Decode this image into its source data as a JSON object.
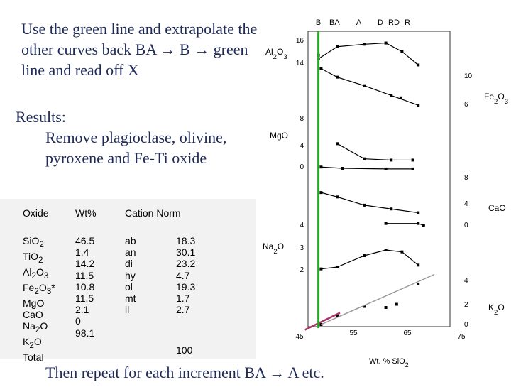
{
  "instructions": "Use the green line and extrapolate the other curves back BA → B → green line and read off X",
  "results": {
    "heading": "Results:",
    "body": "Remove plagioclase, olivine, pyroxene and Fe-Ti oxide"
  },
  "footer": "Then repeat for each increment BA → A etc.",
  "table": {
    "headers": {
      "oxide": "Oxide",
      "wt": "Wt%",
      "cation": "Cation Norm"
    },
    "oxides": [
      "SiO2",
      "TiO2",
      "Al2O3",
      "Fe2O3*",
      "MgO",
      "CaO",
      "Na2O",
      "K2O",
      "Total"
    ],
    "wt": [
      "46.5",
      "1.4",
      "14.2",
      "11.5",
      "10.8",
      "11.5",
      "2.1",
      "0",
      "98.1"
    ],
    "norm_minerals": [
      "ab",
      "an",
      "di",
      "hy",
      "ol",
      "mt",
      "il"
    ],
    "norm_values": [
      "18.3",
      "30.1",
      "23.2",
      "4.7",
      "19.3",
      "1.7",
      "2.7"
    ],
    "norm_total": "100"
  },
  "colors": {
    "text": "#1f2a57",
    "green_line": "#22aa22",
    "extrapolation": "#999999",
    "k2o_extension": "#aa3366",
    "table_bg": "#f2f2f2"
  },
  "chart_data": {
    "type": "scatter",
    "xlabel": "Wt. % SiO2",
    "x_ticks": [
      "45",
      "55",
      "65",
      "75"
    ],
    "xlim": [
      45,
      75
    ],
    "green_line_x": 48.5,
    "sample_labels": [
      {
        "label": "B",
        "x": 48.5
      },
      {
        "label": "BA",
        "x": 51.5
      },
      {
        "label": "A",
        "x": 56
      },
      {
        "label": "D",
        "x": 60
      },
      {
        "label": "RD",
        "x": 62.5
      },
      {
        "label": "R",
        "x": 65
      }
    ],
    "panels": [
      {
        "name": "Al2O3",
        "axis_side": "left",
        "ticks": [
          "16",
          "14"
        ],
        "points": [
          [
            48.5,
            15.2
          ],
          [
            48.5,
            15.5
          ],
          [
            52,
            16.2
          ],
          [
            57,
            16.4
          ],
          [
            61,
            16.5
          ],
          [
            64,
            15.8
          ],
          [
            67,
            14.7
          ],
          [
            49,
            14.4
          ],
          [
            52,
            13.7
          ],
          [
            57,
            13.0
          ],
          [
            62,
            12.2
          ],
          [
            63.8,
            12.0
          ],
          [
            67,
            11.4
          ]
        ]
      },
      {
        "name": "Fe2O3",
        "axis_side": "right",
        "ticks": [
          "10",
          "6"
        ],
        "points": []
      },
      {
        "name": "MgO",
        "axis_side": "left",
        "ticks": [
          "8",
          "4",
          "0"
        ],
        "points": [
          [
            52,
            4.8
          ],
          [
            57,
            2.4
          ],
          [
            62,
            2.2
          ],
          [
            66,
            2.2
          ],
          [
            49,
            1.1
          ],
          [
            53,
            0.9
          ],
          [
            61,
            0.8
          ],
          [
            66,
            0.8
          ]
        ]
      },
      {
        "name": "CaO",
        "axis_side": "right",
        "ticks": [
          "8",
          "4",
          "0"
        ],
        "points": [
          [
            49,
            5.5
          ],
          [
            52,
            4.8
          ],
          [
            57,
            3.5
          ],
          [
            62,
            2.9
          ],
          [
            67,
            2.3
          ],
          [
            61,
            0.6
          ],
          [
            67,
            0.6
          ],
          [
            68,
            0.3
          ]
        ]
      },
      {
        "name": "Na2O",
        "axis_side": "left",
        "ticks": [
          "4",
          "3",
          "2"
        ],
        "points": [
          [
            49,
            2.3
          ],
          [
            52,
            2.4
          ],
          [
            57,
            3.0
          ],
          [
            61,
            3.3
          ],
          [
            64,
            3.2
          ],
          [
            67,
            2.5
          ]
        ]
      },
      {
        "name": "K2O",
        "axis_side": "right",
        "ticks": [
          "4",
          "2",
          "0"
        ],
        "points": [
          [
            49,
            0.2
          ],
          [
            52,
            1.0
          ],
          [
            57,
            1.9
          ],
          [
            61,
            1.8
          ],
          [
            63,
            2.1
          ],
          [
            67,
            4.0
          ]
        ]
      }
    ]
  }
}
